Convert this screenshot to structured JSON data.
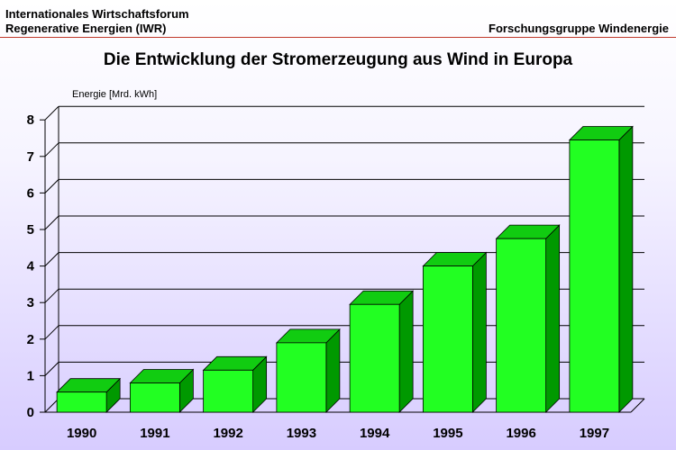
{
  "header": {
    "org_line1": "Internationales Wirtschaftsforum",
    "org_line2": "Regenerative Energien (IWR)",
    "group": "Forschungsgruppe Windenergie"
  },
  "colors": {
    "bar_front": "#22ff22",
    "bar_top": "#11cc11",
    "bar_side": "#009900",
    "grid": "#000000",
    "header_rule": "#c0392b"
  },
  "chart_data": {
    "type": "bar",
    "title": "Die Entwicklung der Stromerzeugung aus Wind in Europa",
    "ylabel": "Energie [Mrd. kWh]",
    "xlabel": "",
    "categories": [
      "1990",
      "1991",
      "1992",
      "1993",
      "1994",
      "1995",
      "1996",
      "1997"
    ],
    "values": [
      0.55,
      0.8,
      1.15,
      1.9,
      2.95,
      4.0,
      4.75,
      7.45
    ],
    "ylim": [
      0,
      8
    ],
    "yticks": [
      "0",
      "1",
      "2",
      "3",
      "4",
      "5",
      "6",
      "7",
      "8"
    ],
    "grid": true,
    "style": "3d"
  }
}
